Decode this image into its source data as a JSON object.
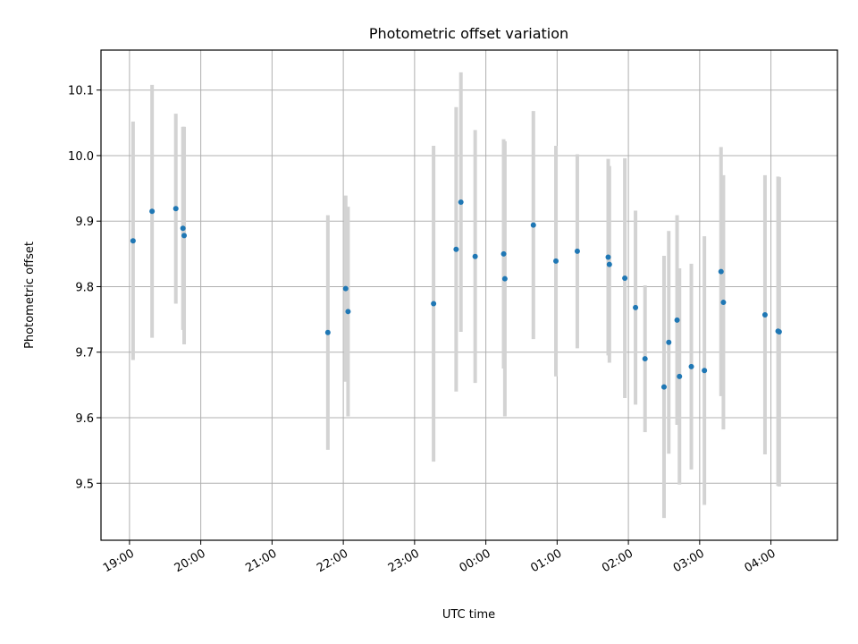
{
  "chart_data": {
    "type": "scatter",
    "title": "Photometric offset variation",
    "xlabel": "UTC time",
    "ylabel": "Photometric offset",
    "xlim": [
      "18:36",
      "04:56"
    ],
    "ylim": [
      9.413,
      10.161
    ],
    "x_ticks": [
      "19:00",
      "20:00",
      "21:00",
      "22:00",
      "23:00",
      "00:00",
      "01:00",
      "02:00",
      "03:00",
      "04:00"
    ],
    "y_ticks": [
      "9.5",
      "9.6",
      "9.7",
      "9.8",
      "9.9",
      "10.0",
      "10.1"
    ],
    "grid": true,
    "marker_color": "#1f77b4",
    "errorbar_color": "#d3d3d3",
    "points": [
      {
        "t": "19:03",
        "y": 9.87,
        "err": 0.182
      },
      {
        "t": "19:19",
        "y": 9.915,
        "err": 0.193
      },
      {
        "t": "19:39",
        "y": 9.919,
        "err": 0.145
      },
      {
        "t": "19:45",
        "y": 9.889,
        "err": 0.155
      },
      {
        "t": "19:46",
        "y": 9.878,
        "err": 0.166
      },
      {
        "t": "21:47",
        "y": 9.73,
        "err": 0.179
      },
      {
        "t": "22:02",
        "y": 9.797,
        "err": 0.142
      },
      {
        "t": "22:04",
        "y": 9.762,
        "err": 0.16
      },
      {
        "t": "23:16",
        "y": 9.774,
        "err": 0.241
      },
      {
        "t": "23:35",
        "y": 9.857,
        "err": 0.217
      },
      {
        "t": "23:39",
        "y": 9.929,
        "err": 0.198
      },
      {
        "t": "23:51",
        "y": 9.846,
        "err": 0.193
      },
      {
        "t": "00:15",
        "y": 9.85,
        "err": 0.175
      },
      {
        "t": "00:16",
        "y": 9.812,
        "err": 0.21
      },
      {
        "t": "00:40",
        "y": 9.894,
        "err": 0.174
      },
      {
        "t": "00:59",
        "y": 9.839,
        "err": 0.176
      },
      {
        "t": "01:17",
        "y": 9.854,
        "err": 0.148
      },
      {
        "t": "01:43",
        "y": 9.845,
        "err": 0.15
      },
      {
        "t": "01:44",
        "y": 9.834,
        "err": 0.15
      },
      {
        "t": "01:57",
        "y": 9.813,
        "err": 0.183
      },
      {
        "t": "02:06",
        "y": 9.768,
        "err": 0.148
      },
      {
        "t": "02:14",
        "y": 9.69,
        "err": 0.112
      },
      {
        "t": "02:30",
        "y": 9.647,
        "err": 0.2
      },
      {
        "t": "02:34",
        "y": 9.715,
        "err": 0.17
      },
      {
        "t": "02:41",
        "y": 9.749,
        "err": 0.16
      },
      {
        "t": "02:43",
        "y": 9.663,
        "err": 0.165
      },
      {
        "t": "02:53",
        "y": 9.678,
        "err": 0.157
      },
      {
        "t": "03:04",
        "y": 9.672,
        "err": 0.205
      },
      {
        "t": "03:18",
        "y": 9.823,
        "err": 0.19
      },
      {
        "t": "03:20",
        "y": 9.776,
        "err": 0.194
      },
      {
        "t": "03:55",
        "y": 9.757,
        "err": 0.213
      },
      {
        "t": "04:06",
        "y": 9.732,
        "err": 0.236
      },
      {
        "t": "04:07",
        "y": 9.731,
        "err": 0.236
      }
    ]
  }
}
